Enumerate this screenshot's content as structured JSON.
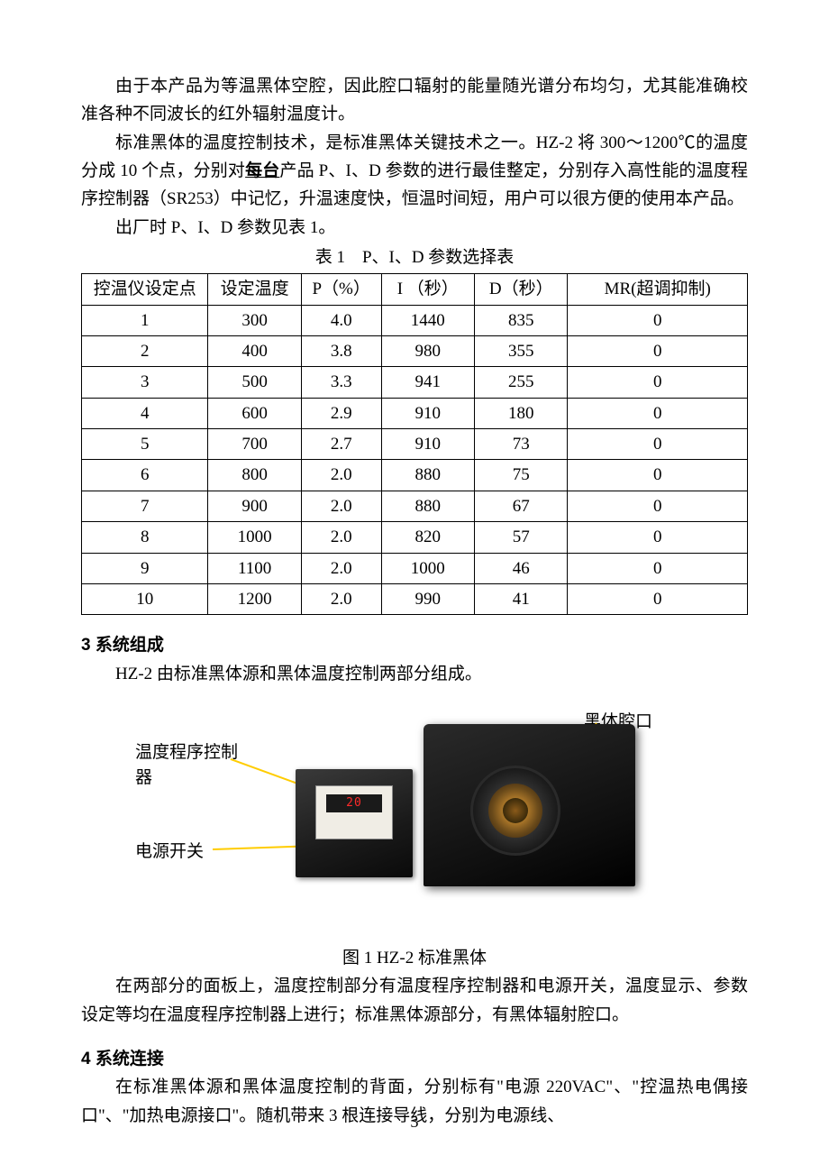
{
  "paragraphs": {
    "p1": "由于本产品为等温黑体空腔，因此腔口辐射的能量随光谱分布均匀，尤其能准确校准各种不同波长的红外辐射温度计。",
    "p2a": "标准黑体的温度控制技术，是标准黑体关键技术之一。HZ-2 将 300～1200℃的温度分成 10 个点，分别对",
    "p2u": "每台",
    "p2b": "产品 P、I、D 参数的进行最佳整定，分别存入高性能的温度程序控制器（SR253）中记忆，升温速度快，恒温时间短，用户可以很方便的使用本产品。",
    "p3": "出厂时 P、I、D 参数见表 1。"
  },
  "table": {
    "caption": "表 1　P、I、D 参数选择表",
    "columns": [
      "控温仪设定点",
      "设定温度",
      "P（%）",
      "I （秒）",
      "D（秒）",
      "MR(超调抑制)"
    ],
    "rows": [
      [
        "1",
        "300",
        "4.0",
        "1440",
        "835",
        "0"
      ],
      [
        "2",
        "400",
        "3.8",
        "980",
        "355",
        "0"
      ],
      [
        "3",
        "500",
        "3.3",
        "941",
        "255",
        "0"
      ],
      [
        "4",
        "600",
        "2.9",
        "910",
        "180",
        "0"
      ],
      [
        "5",
        "700",
        "2.7",
        "910",
        "73",
        "0"
      ],
      [
        "6",
        "800",
        "2.0",
        "880",
        "75",
        "0"
      ],
      [
        "7",
        "900",
        "2.0",
        "880",
        "67",
        "0"
      ],
      [
        "8",
        "1000",
        "2.0",
        "820",
        "57",
        "0"
      ],
      [
        "9",
        "1100",
        "2.0",
        "1000",
        "46",
        "0"
      ],
      [
        "10",
        "1200",
        "2.0",
        "990",
        "41",
        "0"
      ]
    ],
    "col_widths": [
      "19%",
      "14%",
      "12%",
      "14%",
      "14%",
      "27%"
    ]
  },
  "section3": {
    "title": "3 系统组成",
    "text": "HZ-2 由标准黑体源和黑体温度控制两部分组成。"
  },
  "figure": {
    "labels": {
      "controller": "温度程序控制器",
      "power_switch": "电源开关",
      "cavity": "黑体腔口"
    },
    "display_value": "20",
    "caption": "图 1 HZ-2 标准黑体",
    "line_color": "#e6c200"
  },
  "section3_after": "在两部分的面板上，温度控制部分有温度程序控制器和电源开关，温度显示、参数设定等均在温度程序控制器上进行；标准黑体源部分，有黑体辐射腔口。",
  "section4": {
    "title": "4 系统连接",
    "text": "在标准黑体源和黑体温度控制的背面，分别标有\"电源 220VAC\"、\"控温热电偶接口\"、\"加热电源接口\"。随机带来 3 根连接导线，分别为电源线、"
  },
  "page_number": "3"
}
